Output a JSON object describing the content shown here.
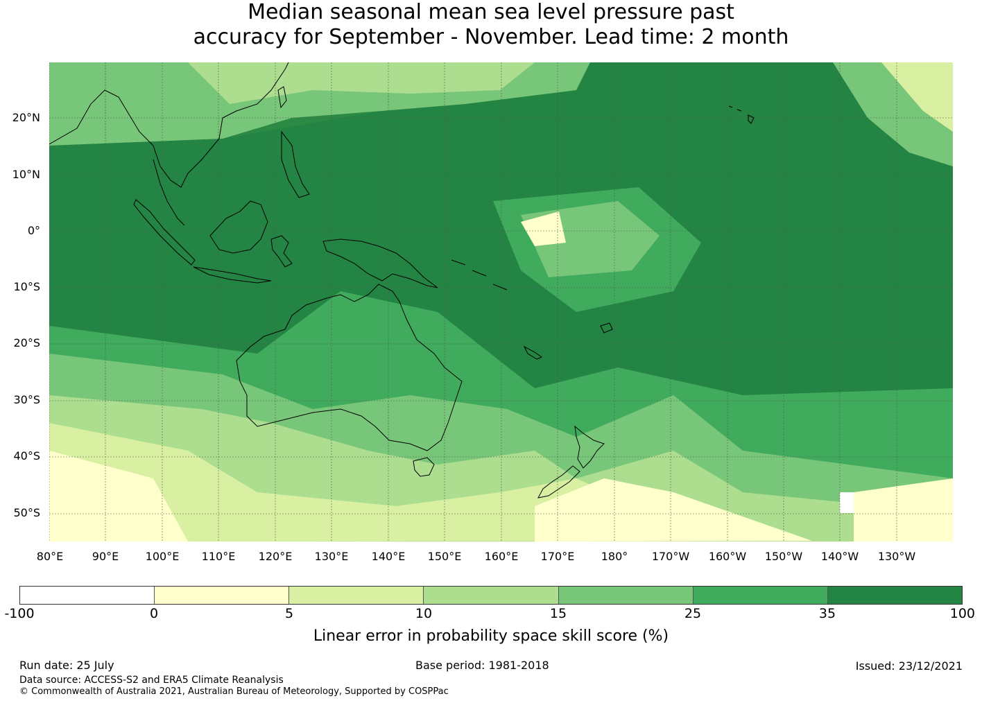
{
  "title_line1": "Median seasonal mean sea level pressure past",
  "title_line2": "accuracy for September - November. Lead time: 2 month",
  "map": {
    "lat_labels": [
      "20°N",
      "10°N",
      "0°",
      "10°S",
      "20°S",
      "30°S",
      "40°S",
      "50°S"
    ],
    "lon_labels": [
      "80°E",
      "90°E",
      "100°E",
      "110°E",
      "120°E",
      "130°E",
      "140°E",
      "150°E",
      "160°E",
      "170°E",
      "180°",
      "170°W",
      "160°W",
      "150°W",
      "140°W",
      "130°W"
    ],
    "land_color": "#ffffff",
    "coastline_color": "#000000"
  },
  "colorbar": {
    "ticks": [
      "-100",
      "0",
      "5",
      "10",
      "15",
      "25",
      "35",
      "100"
    ],
    "colors": [
      "#ffffff",
      "#ffffcc",
      "#d9f0a3",
      "#addd8e",
      "#78c679",
      "#41ab5d",
      "#238443"
    ],
    "label": "Linear error in probability space skill score (%)"
  },
  "footer": {
    "run_date": "Run date: 25 July",
    "base_period": "Base period: 1981-2018",
    "issued": "Issued: 23/12/2021",
    "data_source": "Data source: ACCESS-S2 and ERA5 Climate Reanalysis",
    "copyright": "© Commonwealth of Australia 2021, Australian Bureau of Meteorology, Supported by COSPPac"
  }
}
